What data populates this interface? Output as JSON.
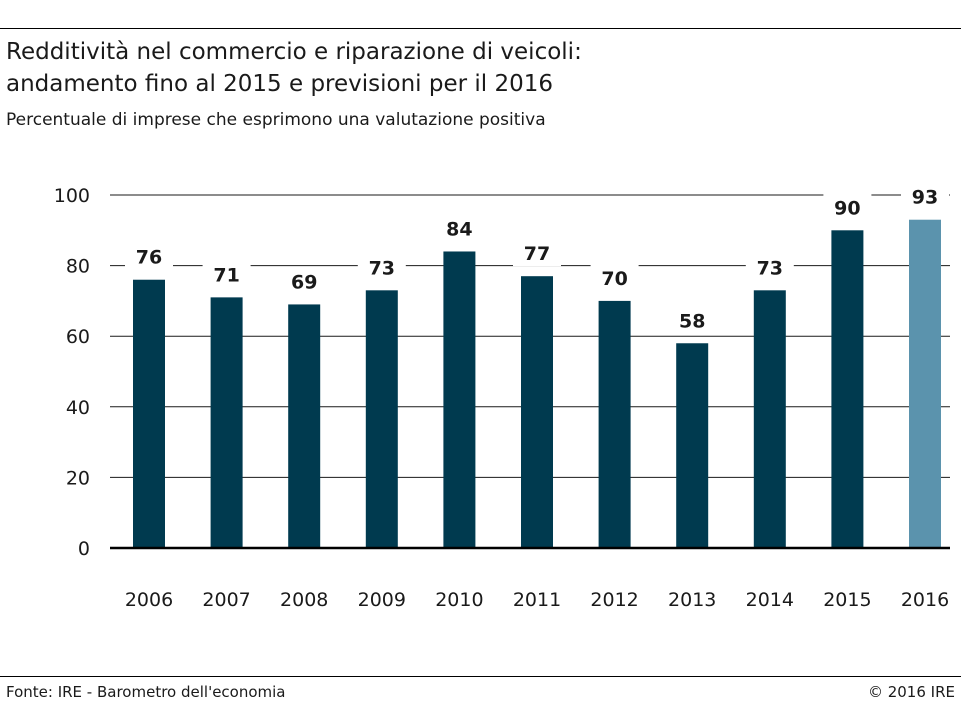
{
  "header": {
    "title_line1": "Redditività nel commercio e riparazione di veicoli:",
    "title_line2": "andamento fino al 2015 e previsioni per il 2016",
    "subtitle": "Percentuale di imprese che esprimono una valutazione positiva"
  },
  "footer": {
    "source": "Fonte: IRE - Barometro dell'economia",
    "copyright": "© 2016 IRE"
  },
  "colors": {
    "bar_actual": "#003a4f",
    "bar_forecast": "#5b93ad",
    "gridline": "#1a1a1a",
    "text": "#1a1a1a"
  },
  "chart_data": {
    "type": "bar",
    "title": "Redditività nel commercio e riparazione di veicoli: andamento fino al 2015 e previsioni per il 2016",
    "subtitle": "Percentuale di imprese che esprimono una valutazione positiva",
    "categories": [
      "2006",
      "2007",
      "2008",
      "2009",
      "2010",
      "2011",
      "2012",
      "2013",
      "2014",
      "2015",
      "2016"
    ],
    "values": [
      76,
      71,
      69,
      73,
      84,
      77,
      70,
      58,
      73,
      90,
      93
    ],
    "forecast_categories": [
      "2016"
    ],
    "xlabel": "",
    "ylabel": "",
    "ylim": [
      0,
      100
    ],
    "yticks": [
      0,
      20,
      40,
      60,
      80,
      100
    ],
    "grid": true,
    "data_labels": true,
    "legend": "none"
  }
}
